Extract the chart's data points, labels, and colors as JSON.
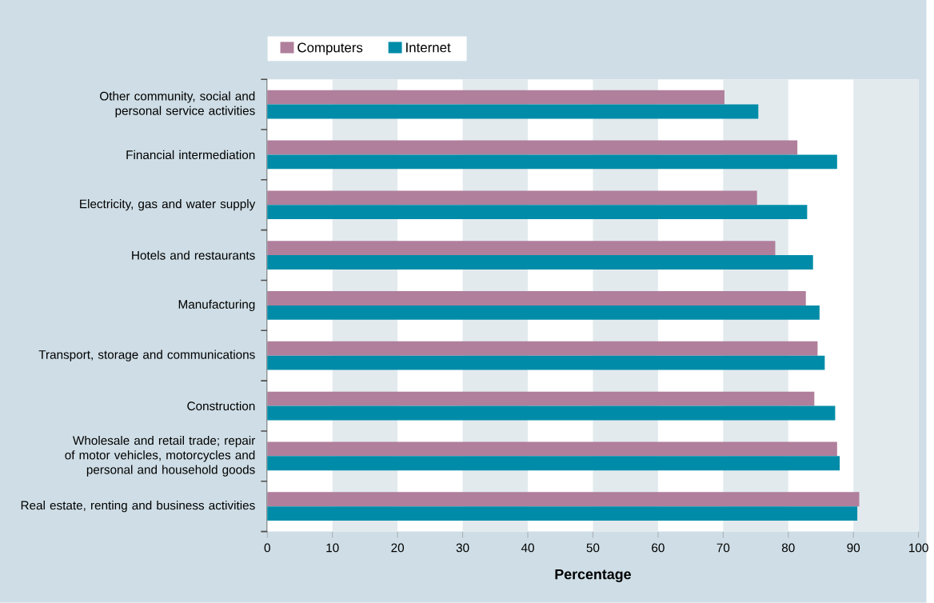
{
  "chart_data": {
    "type": "bar",
    "orientation": "horizontal",
    "xlabel": "Percentage",
    "categories": [
      "Other community, social and personal service activities",
      "Financial intermediation",
      "Electricity, gas and water supply",
      "Hotels and restaurants",
      "Manufacturing",
      "Transport, storage and communications",
      "Construction",
      "Wholesale and retail trade; repair of motor vehicles, motorcycles and personal and household goods",
      "Real estate, renting and business activities"
    ],
    "series": [
      {
        "name": "Computers",
        "color": "#b07f9c",
        "values": [
          70.2,
          81.4,
          75.2,
          78.0,
          82.7,
          84.5,
          84.0,
          87.5,
          90.9
        ]
      },
      {
        "name": "Internet",
        "color": "#008ca8",
        "values": [
          75.4,
          87.5,
          82.9,
          83.8,
          84.8,
          85.6,
          87.2,
          87.9,
          90.6
        ]
      }
    ],
    "xlim": [
      0,
      100
    ],
    "xticks": [
      0,
      10,
      20,
      30,
      40,
      50,
      60,
      70,
      80,
      90,
      100
    ],
    "bands": [
      {
        "axis": "x",
        "from": 10,
        "to": 20,
        "color": "#e2eaee"
      },
      {
        "axis": "x",
        "from": 30,
        "to": 40,
        "color": "#e2eaee"
      },
      {
        "axis": "x",
        "from": 50,
        "to": 60,
        "color": "#e2eaee"
      },
      {
        "axis": "x",
        "from": 70,
        "to": 80,
        "color": "#e2eaee"
      },
      {
        "axis": "x",
        "from": 90,
        "to": 100,
        "color": "#e2eaee"
      }
    ],
    "legend": "top left"
  }
}
